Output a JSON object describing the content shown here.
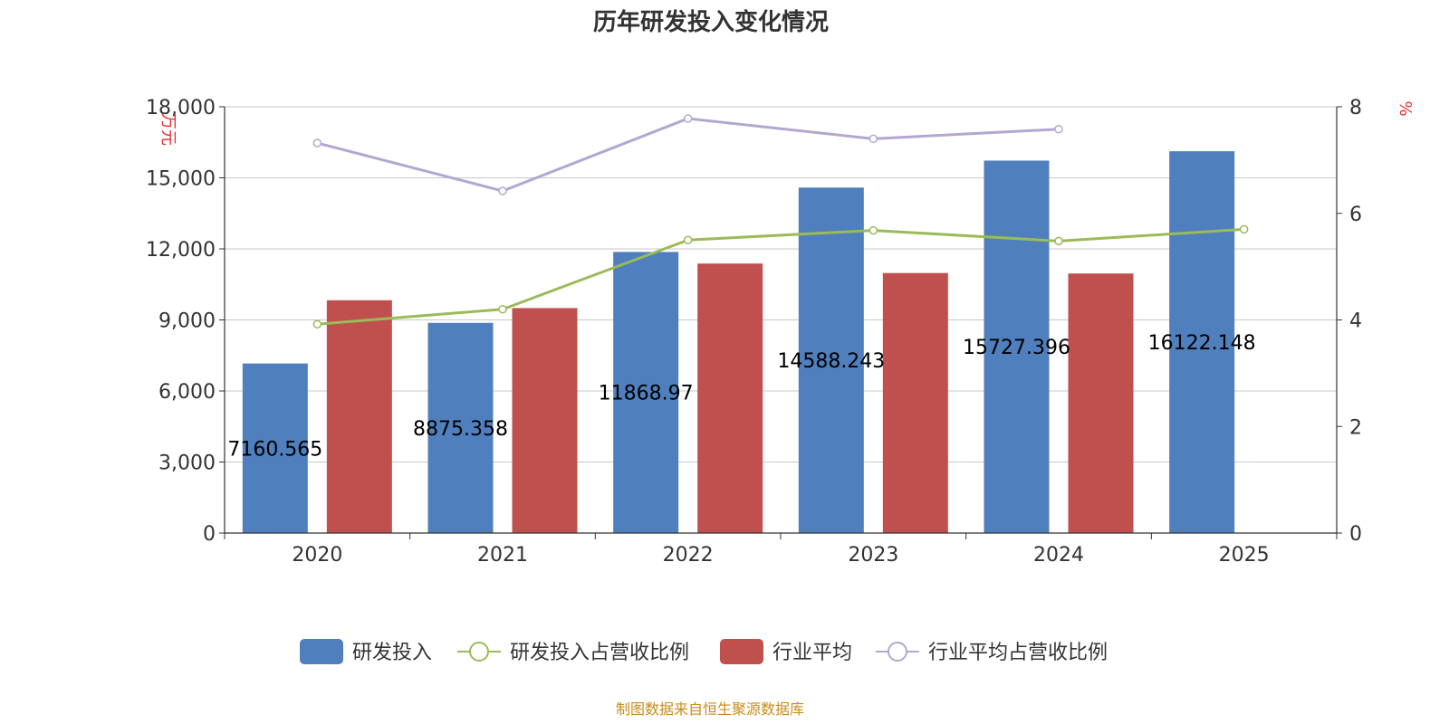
{
  "chart_data": {
    "type": "bar",
    "title": "历年研发投入变化情况",
    "categories": [
      "2020",
      "2021",
      "2022",
      "2023",
      "2024",
      "2025"
    ],
    "y_left": {
      "unit": "万元",
      "ylim": [
        0,
        18000
      ],
      "ticks": [
        "0",
        "3,000",
        "6,000",
        "9,000",
        "12,000",
        "15,000",
        "18,000"
      ]
    },
    "y_right": {
      "unit": "%",
      "ylim": [
        0,
        8
      ],
      "ticks": [
        "0",
        "2",
        "4",
        "6",
        "8"
      ]
    },
    "grid": true,
    "legend_position": "bottom",
    "series": [
      {
        "name": "研发投入",
        "type": "bar",
        "axis": "left",
        "color": "#4f7fbd",
        "values": [
          7160.565,
          8875.358,
          11868.97,
          14588.243,
          15727.396,
          16122.148
        ],
        "labels": [
          "7160.565",
          "8875.358",
          "11868.97",
          "14588.243",
          "15727.396",
          "16122.148"
        ]
      },
      {
        "name": "研发投入占营收比例",
        "type": "line",
        "axis": "right",
        "color": "#9bbb59",
        "values": [
          3.92,
          4.2,
          5.5,
          5.68,
          5.48,
          5.7
        ]
      },
      {
        "name": "行业平均",
        "type": "bar",
        "axis": "left",
        "color": "#c0504d",
        "values": [
          9830,
          9500,
          11380,
          10980,
          10960,
          null
        ]
      },
      {
        "name": "行业平均占营收比例",
        "type": "line",
        "axis": "right",
        "color": "#b3a7d1",
        "values": [
          7.32,
          6.42,
          7.78,
          7.4,
          7.58,
          null
        ]
      }
    ]
  },
  "source": "制图数据来自恒生聚源数据库"
}
